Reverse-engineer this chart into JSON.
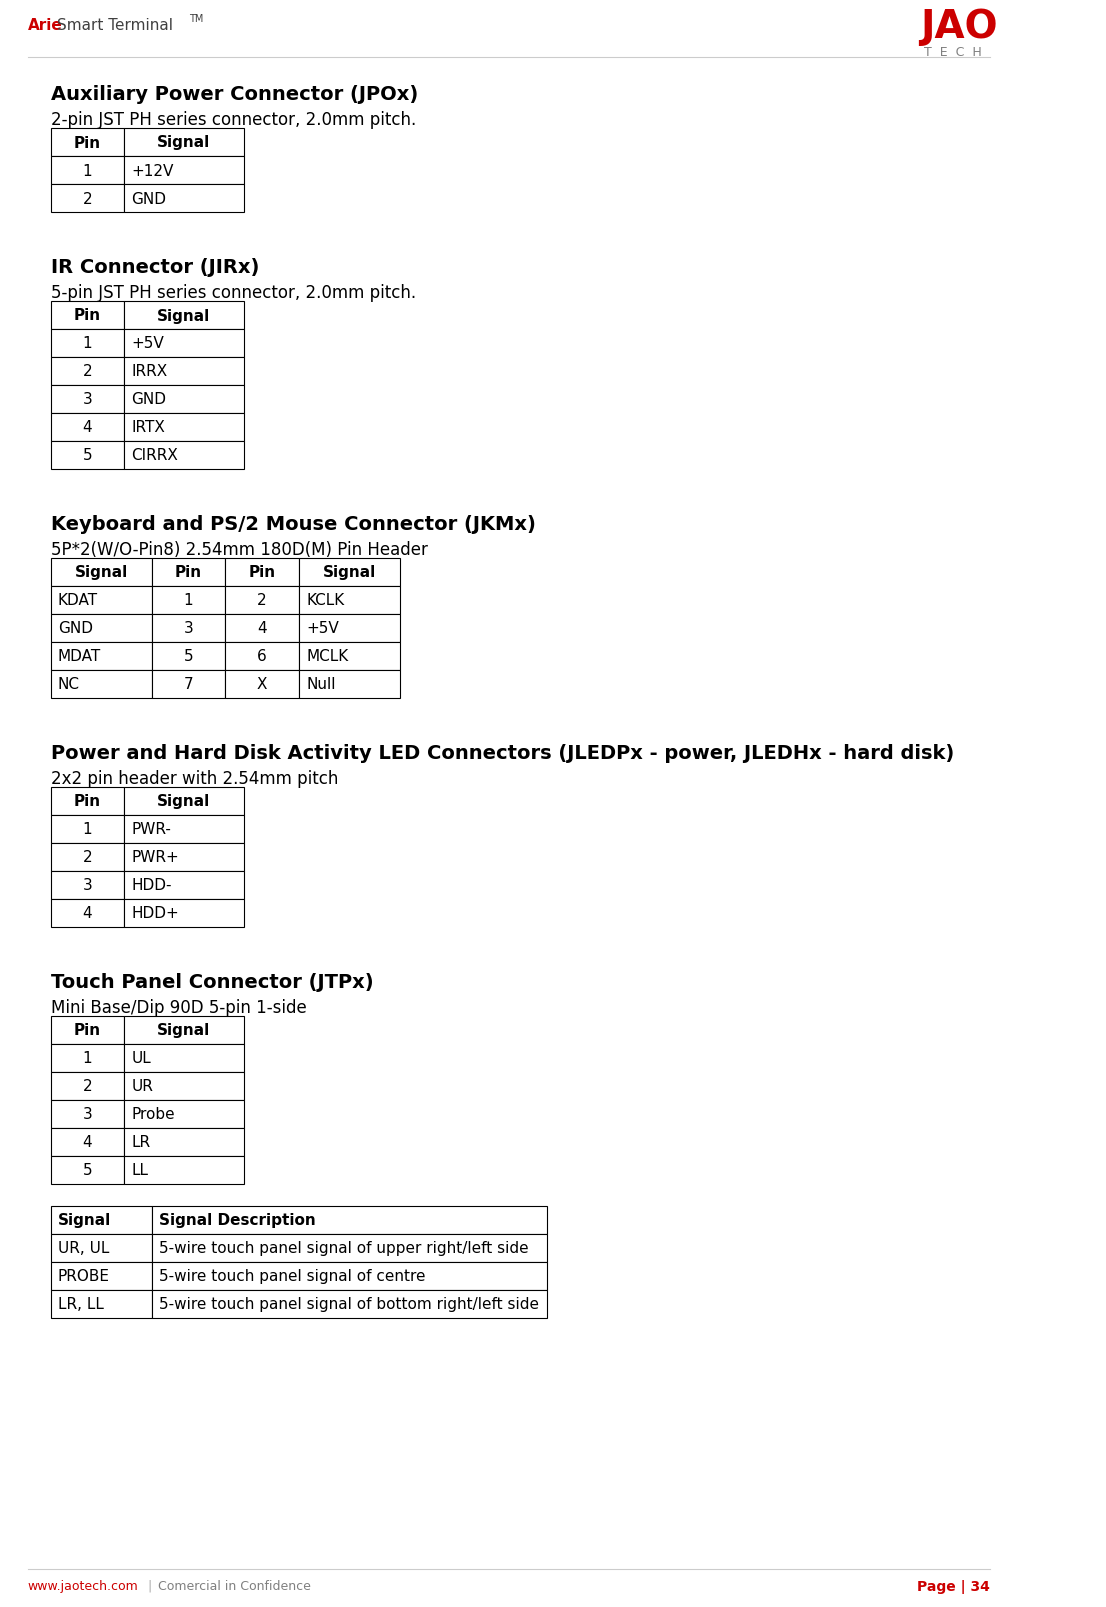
{
  "bg_color": "#ffffff",
  "header_text_red": "Arie",
  "header_text_gray": "Smart Terminal",
  "header_tm": "TM",
  "footer_left": "www.jaotech.com",
  "footer_divider": "|",
  "footer_center": "Comercial in Confidence",
  "footer_right": "Page | 34",
  "sections": [
    {
      "title": "Auxiliary Power Connector (JPOx)",
      "subtitle": "2-pin JST PH series connector, 2.0mm pitch.",
      "table_type": "two_col",
      "col_headers": [
        "Pin",
        "Signal"
      ],
      "rows": [
        [
          "1",
          "+12V"
        ],
        [
          "2",
          "GND"
        ]
      ]
    },
    {
      "title": "IR Connector (JIRx)",
      "subtitle": "5-pin JST PH series connector, 2.0mm pitch.",
      "table_type": "two_col",
      "col_headers": [
        "Pin",
        "Signal"
      ],
      "rows": [
        [
          "1",
          "+5V"
        ],
        [
          "2",
          "IRRX"
        ],
        [
          "3",
          "GND"
        ],
        [
          "4",
          "IRTX"
        ],
        [
          "5",
          "CIRRX"
        ]
      ]
    },
    {
      "title": "Keyboard and PS/2 Mouse Connector (JKMx)",
      "subtitle": "5P*2(W/O-Pin8) 2.54mm 180D(M) Pin Header",
      "table_type": "four_col",
      "col_headers": [
        "Signal",
        "Pin",
        "Pin",
        "Signal"
      ],
      "rows": [
        [
          "KDAT",
          "1",
          "2",
          "KCLK"
        ],
        [
          "GND",
          "3",
          "4",
          "+5V"
        ],
        [
          "MDAT",
          "5",
          "6",
          "MCLK"
        ],
        [
          "NC",
          "7",
          "X",
          "Null"
        ]
      ]
    },
    {
      "title": "Power and Hard Disk Activity LED Connectors (JLEDPx - power, JLEDHx - hard disk)",
      "subtitle": "2x2 pin header with 2.54mm pitch",
      "table_type": "two_col",
      "col_headers": [
        "Pin",
        "Signal"
      ],
      "rows": [
        [
          "1",
          "PWR-"
        ],
        [
          "2",
          "PWR+"
        ],
        [
          "3",
          "HDD-"
        ],
        [
          "4",
          "HDD+"
        ]
      ]
    },
    {
      "title": "Touch Panel Connector (JTPx)",
      "subtitle": "Mini Base/Dip 90D 5-pin 1-side",
      "table_type": "two_col",
      "col_headers": [
        "Pin",
        "Signal"
      ],
      "rows": [
        [
          "1",
          "UL"
        ],
        [
          "2",
          "UR"
        ],
        [
          "3",
          "Probe"
        ],
        [
          "4",
          "LR"
        ],
        [
          "5",
          "LL"
        ]
      ]
    }
  ],
  "touch_signal_table": {
    "col_headers": [
      "Signal",
      "Signal Description"
    ],
    "rows": [
      [
        "UR, UL",
        "5-wire touch panel signal of upper right/left side"
      ],
      [
        "PROBE",
        "5-wire touch panel signal of centre"
      ],
      [
        "LR, LL",
        "5-wire touch panel signal of bottom right/left side"
      ]
    ]
  }
}
